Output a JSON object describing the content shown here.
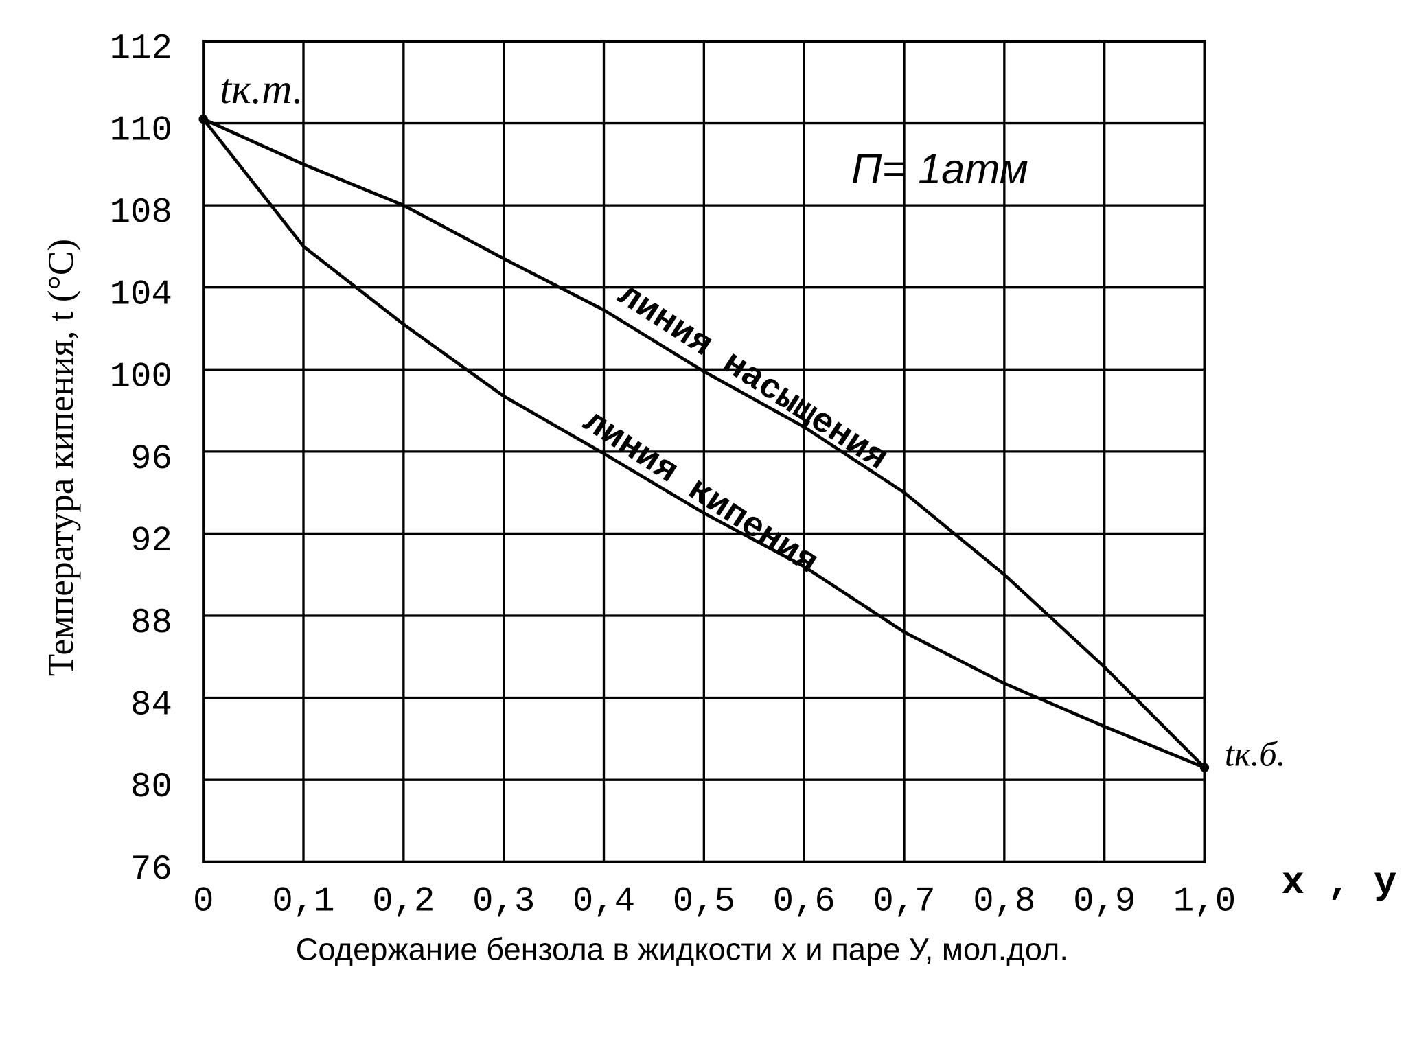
{
  "chart_data": {
    "type": "line",
    "xlabel": "Содержание бензола в жидкости x и паре У, мол.дол.",
    "ylabel": "Температура кипения,  t  (°C)",
    "axis_end_label": "x , y",
    "annotations": [
      "tк.т.",
      "tк.б.",
      "П= 1атм"
    ],
    "x": [
      0,
      0.1,
      0.2,
      0.3,
      0.4,
      0.5,
      0.6,
      0.7,
      0.8,
      0.9,
      1.0
    ],
    "series": [
      {
        "name": "линия кипения",
        "color": "#000000",
        "values": [
          110.1,
          106.0,
          102.2,
          98.7,
          95.9,
          93.0,
          90.4,
          87.2,
          84.7,
          82.6,
          80.6
        ]
      },
      {
        "name": "линия насыщения",
        "color": "#000000",
        "values": [
          110.1,
          109.0,
          108.0,
          105.4,
          102.9,
          99.9,
          97.2,
          94.0,
          90.0,
          85.5,
          80.6
        ]
      }
    ],
    "xlim": [
      0,
      1.0
    ],
    "xticks": [
      0,
      {
        "value": 0.1,
        "label": "0,1"
      },
      {
        "value": 0.2,
        "label": "0,2"
      },
      {
        "value": 0.3,
        "label": "0,3"
      },
      {
        "value": 0.4,
        "label": "0,4"
      },
      {
        "value": 0.5,
        "label": "0,5"
      },
      {
        "value": 0.6,
        "label": "0,6"
      },
      {
        "value": 0.7,
        "label": "0,7"
      },
      {
        "value": 0.8,
        "label": "0,8"
      },
      {
        "value": 0.9,
        "label": "0,9"
      },
      {
        "value": 1.0,
        "label": "1,0"
      }
    ],
    "ylim": [
      76,
      112
    ],
    "yticks": [
      76,
      80,
      84,
      88,
      92,
      96,
      100,
      104,
      108,
      110,
      112
    ],
    "grid": true
  }
}
